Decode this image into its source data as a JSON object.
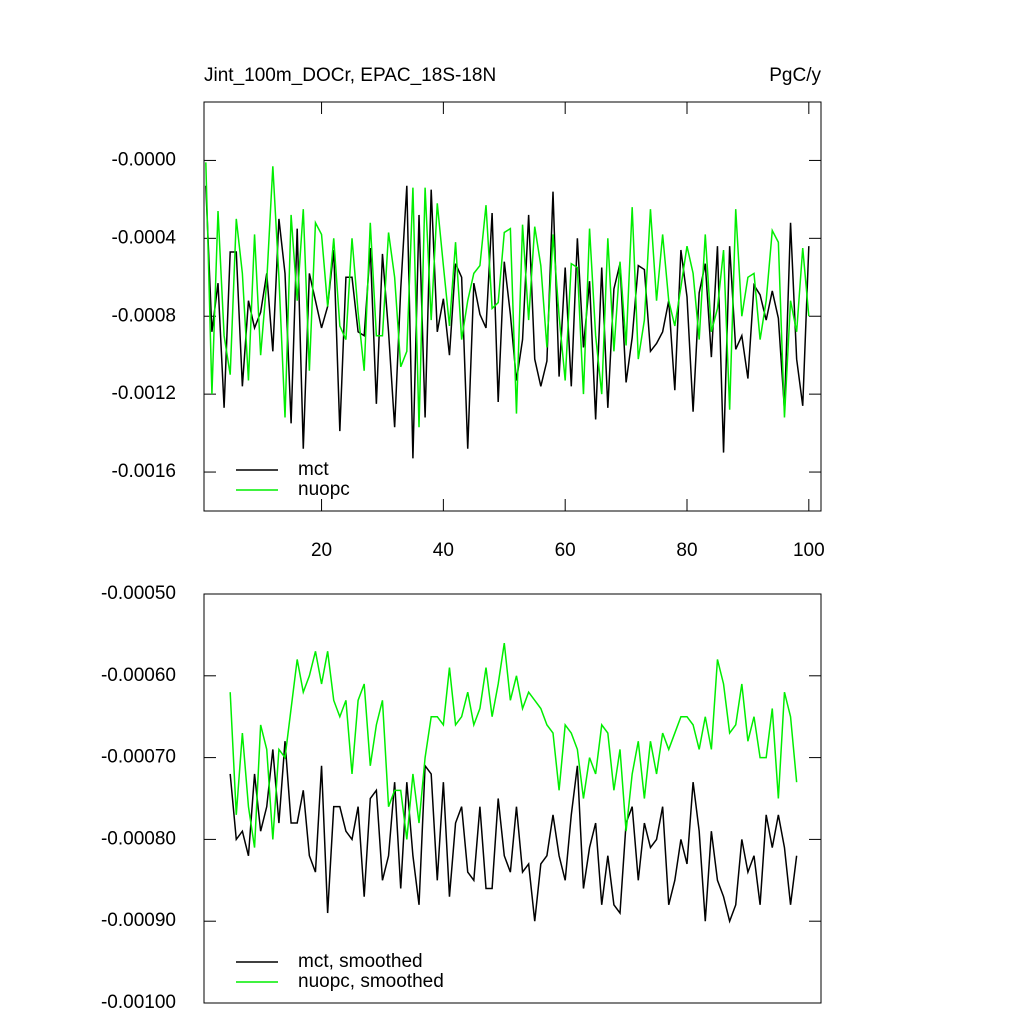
{
  "chart_data": [
    {
      "type": "line",
      "title": "Jint_100m_DOCr, EPAC_18S-18N",
      "units": "PgC/y",
      "x": [
        1,
        2,
        3,
        4,
        5,
        6,
        7,
        8,
        9,
        10,
        11,
        12,
        13,
        14,
        15,
        16,
        17,
        18,
        19,
        20,
        21,
        22,
        23,
        24,
        25,
        26,
        27,
        28,
        29,
        30,
        31,
        32,
        33,
        34,
        35,
        36,
        37,
        38,
        39,
        40,
        41,
        42,
        43,
        44,
        45,
        46,
        47,
        48,
        49,
        50,
        51,
        52,
        53,
        54,
        55,
        56,
        57,
        58,
        59,
        60,
        61,
        62,
        63,
        64,
        65,
        66,
        67,
        68,
        69,
        70,
        71,
        72,
        73,
        74,
        75,
        76,
        77,
        78,
        79,
        80,
        81,
        82,
        83,
        84,
        85,
        86,
        87,
        88,
        89,
        90,
        91,
        92,
        93,
        94,
        95,
        96,
        97,
        98,
        99,
        100
      ],
      "xlim": [
        0.7,
        102
      ],
      "xticks": [
        20,
        40,
        60,
        80,
        100
      ],
      "ylim": [
        -0.0018,
        0.0003
      ],
      "yticks": [
        {
          "value": 0,
          "label": "-0.0000"
        },
        -0.0004,
        -0.0008,
        -0.0012,
        -0.0016
      ],
      "legend": "lower left",
      "series": [
        {
          "name": "mct",
          "color": "#000000",
          "values": [
            -0.00013,
            -0.00088,
            -0.00063,
            -0.00127,
            -0.00047,
            -0.00047,
            -0.00116,
            -0.00072,
            -0.00086,
            -0.00078,
            -0.00058,
            -0.00098,
            -0.0003,
            -0.00058,
            -0.00135,
            -0.00035,
            -0.00148,
            -0.00058,
            -0.00072,
            -0.00086,
            -0.00075,
            -0.00046,
            -0.00139,
            -0.0006,
            -0.0006,
            -0.00088,
            -0.0009,
            -0.00045,
            -0.00125,
            -0.00048,
            -0.00088,
            -0.00137,
            -0.00066,
            -0.00013,
            -0.00153,
            -0.00028,
            -0.00132,
            -0.00015,
            -0.00088,
            -0.00071,
            -0.001,
            -0.00053,
            -0.0006,
            -0.00148,
            -0.00063,
            -0.00079,
            -0.00086,
            -0.00027,
            -0.00124,
            -0.00052,
            -0.00079,
            -0.00113,
            -0.00092,
            -0.00028,
            -0.00102,
            -0.00116,
            -0.00103,
            -0.00016,
            -0.00111,
            -0.00055,
            -0.00116,
            -0.0004,
            -0.00096,
            -0.00062,
            -0.00133,
            -0.00055,
            -0.00127,
            -0.00066,
            -0.00053,
            -0.00114,
            -0.00091,
            -0.00054,
            -0.00056,
            -0.00098,
            -0.00094,
            -0.00088,
            -0.00072,
            -0.00118,
            -0.00046,
            -0.0007,
            -0.00129,
            -0.00068,
            -0.00053,
            -0.00101,
            -0.00044,
            -0.0015,
            -0.00044,
            -0.00097,
            -0.0009,
            -0.00112,
            -0.00064,
            -0.00069,
            -0.00082,
            -0.00067,
            -0.00081,
            -0.00128,
            -0.00032,
            -0.00102,
            -0.00126,
            -0.00044
          ]
        },
        {
          "name": "nuopc",
          "color": "#00ee00",
          "values": [
            -1e-05,
            -0.0012,
            -0.00026,
            -0.0009,
            -0.0011,
            -0.0003,
            -0.00058,
            -0.00113,
            -0.00038,
            -0.001,
            -0.00062,
            -3e-05,
            -0.0006,
            -0.00132,
            -0.00028,
            -0.00072,
            -0.00025,
            -0.00108,
            -0.00032,
            -0.00038,
            -0.00075,
            -0.0004,
            -0.00085,
            -0.00092,
            -0.0004,
            -0.00078,
            -0.00108,
            -0.00032,
            -0.0009,
            -0.0009,
            -0.00037,
            -0.0006,
            -0.00106,
            -0.00098,
            -0.00014,
            -0.00137,
            -0.00014,
            -0.00082,
            -0.00022,
            -0.00054,
            -0.00085,
            -0.00042,
            -0.00092,
            -0.00072,
            -0.00058,
            -0.00054,
            -0.00023,
            -0.00076,
            -0.00073,
            -0.00037,
            -0.00035,
            -0.0013,
            -0.00033,
            -0.00082,
            -0.00034,
            -0.00054,
            -0.00096,
            -0.00038,
            -0.0008,
            -0.00113,
            -0.00053,
            -0.00055,
            -0.0012,
            -0.00035,
            -0.0009,
            -0.0012,
            -0.0004,
            -0.00098,
            -0.00052,
            -0.00095,
            -0.00024,
            -0.00102,
            -0.00082,
            -0.00025,
            -0.00072,
            -0.00038,
            -0.00072,
            -0.00085,
            -0.00065,
            -0.00044,
            -0.00058,
            -0.00092,
            -0.00038,
            -0.00088,
            -0.00076,
            -0.00046,
            -0.00128,
            -0.00025,
            -0.0008,
            -0.0006,
            -0.00058,
            -0.00092,
            -0.00072,
            -0.00036,
            -0.00042,
            -0.00132,
            -0.00072,
            -0.00088,
            -0.00045,
            -0.0008
          ]
        }
      ]
    },
    {
      "type": "line",
      "x": [
        5,
        6,
        7,
        8,
        9,
        10,
        11,
        12,
        13,
        14,
        15,
        16,
        17,
        18,
        19,
        20,
        21,
        22,
        23,
        24,
        25,
        26,
        27,
        28,
        29,
        30,
        31,
        32,
        33,
        34,
        35,
        36,
        37,
        38,
        39,
        40,
        41,
        42,
        43,
        44,
        45,
        46,
        47,
        48,
        49,
        50,
        51,
        52,
        53,
        54,
        55,
        56,
        57,
        58,
        59,
        60,
        61,
        62,
        63,
        64,
        65,
        66,
        67,
        68,
        69,
        70,
        71,
        72,
        73,
        74,
        75,
        76,
        77,
        78,
        79,
        80,
        81,
        82,
        83,
        84,
        85,
        86,
        87,
        88,
        89,
        90,
        91,
        92,
        93,
        94,
        95,
        96,
        97,
        98
      ],
      "xlim": [
        0.7,
        102
      ],
      "ylim": [
        -0.001,
        -0.0005
      ],
      "yticks": [
        {
          "value": -0.0005,
          "label": "-0.00050"
        },
        {
          "value": -0.0006,
          "label": "-0.00060"
        },
        {
          "value": -0.0007,
          "label": "-0.00070"
        },
        {
          "value": -0.0008,
          "label": "-0.00080"
        },
        {
          "value": -0.0009,
          "label": "-0.00090"
        },
        {
          "value": -0.001,
          "label": "-0.00100"
        }
      ],
      "legend": "lower left",
      "series": [
        {
          "name": "mct, smoothed",
          "color": "#000000",
          "values": [
            -0.00072,
            -0.0008,
            -0.00079,
            -0.00082,
            -0.00072,
            -0.00079,
            -0.00076,
            -0.00069,
            -0.00078,
            -0.00068,
            -0.00078,
            -0.00078,
            -0.00074,
            -0.00082,
            -0.00084,
            -0.00071,
            -0.00089,
            -0.00076,
            -0.00076,
            -0.00079,
            -0.0008,
            -0.00076,
            -0.00087,
            -0.00075,
            -0.00074,
            -0.00085,
            -0.00082,
            -0.00073,
            -0.00086,
            -0.00073,
            -0.00082,
            -0.00088,
            -0.00071,
            -0.00072,
            -0.00085,
            -0.00073,
            -0.00087,
            -0.00078,
            -0.00076,
            -0.00084,
            -0.00085,
            -0.00076,
            -0.00086,
            -0.00086,
            -0.00075,
            -0.00082,
            -0.00084,
            -0.00076,
            -0.00084,
            -0.00083,
            -0.0009,
            -0.00083,
            -0.00082,
            -0.00077,
            -0.00082,
            -0.00085,
            -0.00077,
            -0.00071,
            -0.00086,
            -0.00081,
            -0.00078,
            -0.00088,
            -0.00082,
            -0.00088,
            -0.00089,
            -0.00078,
            -0.00076,
            -0.00085,
            -0.00078,
            -0.00081,
            -0.0008,
            -0.00076,
            -0.00088,
            -0.00085,
            -0.0008,
            -0.00083,
            -0.00073,
            -0.00079,
            -0.0009,
            -0.00079,
            -0.00085,
            -0.00087,
            -0.0009,
            -0.00088,
            -0.0008,
            -0.00084,
            -0.00082,
            -0.00088,
            -0.00077,
            -0.00081,
            -0.00077,
            -0.00081,
            -0.00088,
            -0.00082
          ]
        },
        {
          "name": "nuopc, smoothed",
          "color": "#00ee00",
          "values": [
            -0.00062,
            -0.00077,
            -0.00067,
            -0.00076,
            -0.00081,
            -0.00066,
            -0.00069,
            -0.0008,
            -0.00069,
            -0.0007,
            -0.00064,
            -0.00058,
            -0.00062,
            -0.0006,
            -0.00057,
            -0.00061,
            -0.00057,
            -0.00063,
            -0.00065,
            -0.00063,
            -0.00072,
            -0.00063,
            -0.00061,
            -0.00071,
            -0.00066,
            -0.00063,
            -0.00076,
            -0.00074,
            -0.00074,
            -0.0008,
            -0.00072,
            -0.00078,
            -0.0007,
            -0.00065,
            -0.00065,
            -0.00066,
            -0.00059,
            -0.00066,
            -0.00065,
            -0.00062,
            -0.00066,
            -0.00064,
            -0.00059,
            -0.00065,
            -0.00061,
            -0.00056,
            -0.00063,
            -0.0006,
            -0.00064,
            -0.00062,
            -0.00063,
            -0.00064,
            -0.00066,
            -0.00067,
            -0.00074,
            -0.00066,
            -0.00067,
            -0.00069,
            -0.00075,
            -0.0007,
            -0.00072,
            -0.00066,
            -0.00067,
            -0.00074,
            -0.00069,
            -0.00079,
            -0.00072,
            -0.00068,
            -0.00075,
            -0.00068,
            -0.00072,
            -0.00067,
            -0.00069,
            -0.00067,
            -0.00065,
            -0.00065,
            -0.00066,
            -0.00069,
            -0.00065,
            -0.00069,
            -0.00058,
            -0.00061,
            -0.00067,
            -0.00066,
            -0.00061,
            -0.00068,
            -0.00065,
            -0.0007,
            -0.0007,
            -0.00064,
            -0.00075,
            -0.00062,
            -0.00065,
            -0.00073
          ]
        }
      ]
    }
  ]
}
